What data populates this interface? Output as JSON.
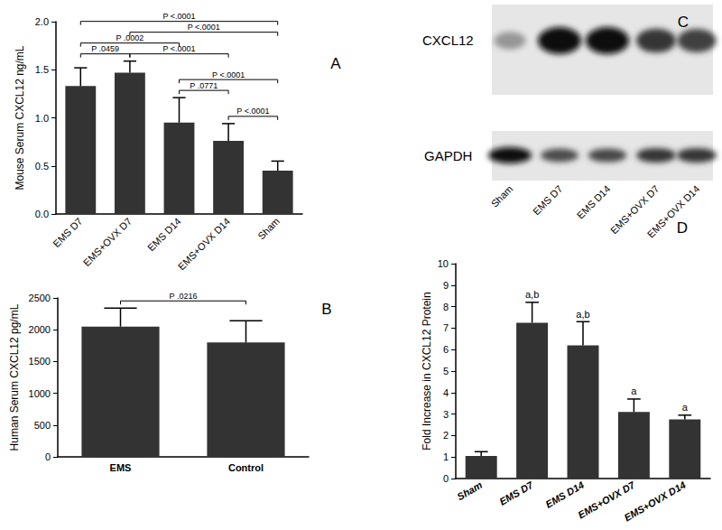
{
  "chart_data": [
    {
      "type": "bar",
      "title": "A",
      "ylabel": "Mouse Serum CXCL12 ng/mL",
      "categories": [
        "EMS D7",
        "EMS+OVX D7",
        "EMS D14",
        "EMS+OVX D14",
        "Sham"
      ],
      "values": [
        1.33,
        1.47,
        0.95,
        0.76,
        0.45
      ],
      "errors": [
        0.19,
        0.12,
        0.26,
        0.18,
        0.1
      ],
      "color": "#333333",
      "grid": false,
      "ylim": [
        0,
        2
      ],
      "yticks": [
        {
          "value": 0,
          "label": "0.0"
        },
        {
          "value": 0.5,
          "label": "0.5"
        },
        {
          "value": 1,
          "label": "1.0"
        },
        {
          "value": 1.5,
          "label": "1.5"
        },
        {
          "value": 2,
          "label": "2.0"
        }
      ],
      "annotations": [
        {
          "from": "EMS D14",
          "to": "EMS+OVX D14",
          "text": "P .0771"
        },
        {
          "from": "EMS+OVX D14",
          "to": "Sham",
          "text": "P <.0001"
        },
        {
          "from": "EMS D14",
          "to": "Sham",
          "text": "P <.0001"
        },
        {
          "from": "EMS D7",
          "to": "EMS+OVX D7",
          "text": "P .0459"
        },
        {
          "from": "EMS+OVX D7",
          "to": "EMS+OVX D14",
          "text": "P <.0001"
        },
        {
          "from": "EMS D7",
          "to": "EMS D14",
          "text": "P .0002"
        },
        {
          "from": "EMS+OVX D7",
          "to": "Sham",
          "text": "P <.0001"
        },
        {
          "from": "EMS D7",
          "to": "Sham",
          "text": "P <.0001"
        }
      ]
    },
    {
      "type": "bar",
      "title": "B",
      "ylabel": "Human Serum CXCL12 pg/mL",
      "categories": [
        "EMS",
        "Control"
      ],
      "values": [
        2050,
        1800
      ],
      "errors": [
        290,
        340
      ],
      "color": "#333333",
      "grid": false,
      "ylim": [
        0,
        2500
      ],
      "yticks": [
        0,
        500,
        1000,
        1500,
        2000,
        2500
      ],
      "annotations": [
        {
          "from": "EMS",
          "to": "Control",
          "text": "P .0216"
        }
      ]
    },
    {
      "type": "bar",
      "title": "D",
      "ylabel": "Fold Increase in CXCL12 Protein",
      "categories": [
        "Sham",
        "EMS D7",
        "EMS D14",
        "EMS+OVX D7",
        "EMS+OVX D14"
      ],
      "values": [
        1.05,
        7.25,
        6.2,
        3.1,
        2.75
      ],
      "errors": [
        0.2,
        0.95,
        1.1,
        0.6,
        0.2
      ],
      "color": "#333333",
      "grid": false,
      "ylim": [
        0,
        10
      ],
      "yticks": [
        0,
        1,
        2,
        3,
        4,
        5,
        6,
        7,
        8,
        9,
        10
      ],
      "annotations": [
        {
          "at": "EMS D7",
          "text": "a,b"
        },
        {
          "at": "EMS D14",
          "text": "a,b"
        },
        {
          "at": "EMS+OVX D7",
          "text": "a"
        },
        {
          "at": "EMS+OVX D14",
          "text": "a"
        }
      ]
    }
  ],
  "blot": {
    "title": "C",
    "lanes": [
      "Sham",
      "EMS D7",
      "EMS D14",
      "EMS+OVX D7",
      "EMS+OVX D14"
    ],
    "rows": [
      {
        "label": "CXCL12",
        "intensities": [
          0.35,
          1,
          1,
          0.8,
          0.75
        ]
      },
      {
        "label": "GAPDH",
        "intensities": [
          1,
          0.7,
          0.72,
          0.8,
          0.8
        ]
      }
    ]
  }
}
